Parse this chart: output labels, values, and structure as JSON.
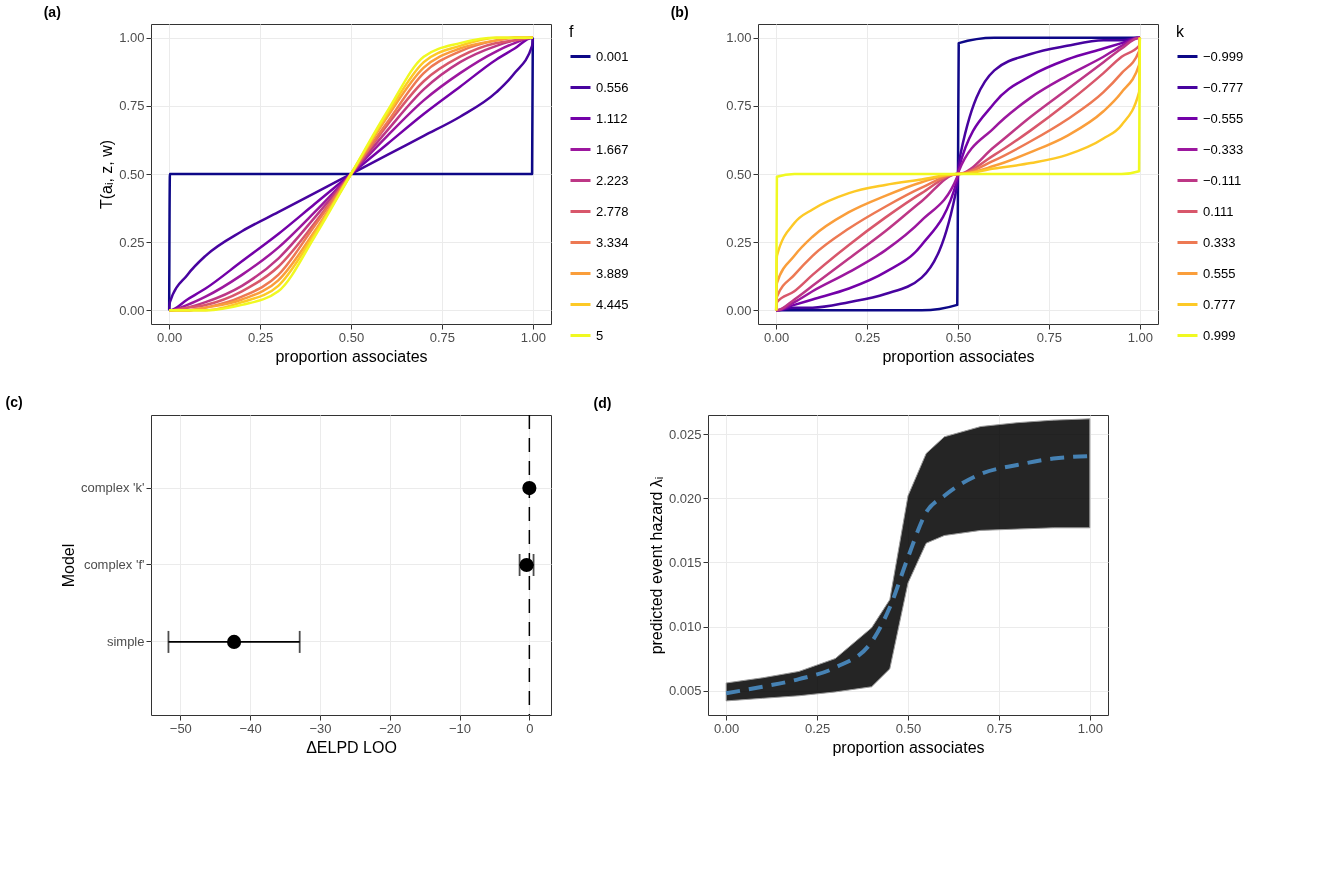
{
  "chart_data": [
    {
      "type": "line",
      "title": "(a)",
      "xlabel": "proportion associates",
      "ylabel": "T(aᵢ, z, w)",
      "legend_title": "f",
      "legend": "right",
      "grid": true,
      "line_style": "solid",
      "marker": "none",
      "x": [
        0,
        0.002,
        0.05,
        0.1,
        0.2,
        0.3,
        0.4,
        0.5,
        0.6,
        0.7,
        0.8,
        0.9,
        0.95,
        0.998,
        1
      ],
      "xlim": [
        -0.05,
        1.05
      ],
      "ylim": [
        -0.05,
        1.05
      ],
      "xticks": [
        {
          "value": 0,
          "label": "0.00"
        },
        {
          "value": 0.25,
          "label": "0.25"
        },
        {
          "value": 0.5,
          "label": "0.50"
        },
        {
          "value": 0.75,
          "label": "0.75"
        },
        {
          "value": 1,
          "label": "1.00"
        }
      ],
      "yticks": [
        {
          "value": 0,
          "label": "0.00"
        },
        {
          "value": 0.25,
          "label": "0.25"
        },
        {
          "value": 0.5,
          "label": "0.50"
        },
        {
          "value": 0.75,
          "label": "0.75"
        },
        {
          "value": 1,
          "label": "1.00"
        }
      ],
      "series": [
        {
          "name": "0.001",
          "color": "#0d0887",
          "values": [
            0,
            0.5,
            0.5,
            0.5,
            0.5,
            0.5,
            0.5,
            0.5,
            0.5,
            0.5,
            0.5,
            0.5,
            0.5,
            0.5,
            1
          ]
        },
        {
          "name": "0.556",
          "color": "#47039f",
          "values": [
            0,
            0.03,
            0.13,
            0.2,
            0.29,
            0.36,
            0.43,
            0.5,
            0.57,
            0.64,
            0.71,
            0.8,
            0.87,
            0.97,
            1
          ]
        },
        {
          "name": "1.112",
          "color": "#7301a8",
          "values": [
            0,
            0,
            0.04,
            0.08,
            0.18,
            0.28,
            0.39,
            0.5,
            0.61,
            0.72,
            0.82,
            0.92,
            0.96,
            1,
            1
          ]
        },
        {
          "name": "1.667",
          "color": "#9c179e",
          "values": [
            0,
            0,
            0.02,
            0.05,
            0.13,
            0.23,
            0.36,
            0.5,
            0.64,
            0.77,
            0.87,
            0.95,
            0.98,
            1,
            1
          ]
        },
        {
          "name": "2.223",
          "color": "#bd3786",
          "values": [
            0,
            0,
            0.01,
            0.03,
            0.09,
            0.19,
            0.34,
            0.5,
            0.66,
            0.81,
            0.91,
            0.97,
            0.99,
            1,
            1
          ]
        },
        {
          "name": "2.778",
          "color": "#d8576b",
          "values": [
            0,
            0,
            0.01,
            0.02,
            0.07,
            0.16,
            0.32,
            0.5,
            0.68,
            0.84,
            0.93,
            0.98,
            0.99,
            1,
            1
          ]
        },
        {
          "name": "3.334",
          "color": "#ed7953",
          "values": [
            0,
            0,
            0,
            0.01,
            0.05,
            0.13,
            0.31,
            0.5,
            0.69,
            0.87,
            0.95,
            0.99,
            1,
            1,
            1
          ]
        },
        {
          "name": "3.889",
          "color": "#fa9e3b",
          "values": [
            0,
            0,
            0,
            0.01,
            0.04,
            0.11,
            0.29,
            0.5,
            0.71,
            0.89,
            0.96,
            0.99,
            1,
            1,
            1
          ]
        },
        {
          "name": "4.445",
          "color": "#fdc926",
          "values": [
            0,
            0,
            0,
            0,
            0.03,
            0.09,
            0.28,
            0.5,
            0.72,
            0.91,
            0.97,
            1,
            1,
            1,
            1
          ]
        },
        {
          "name": "5",
          "color": "#f0f921",
          "values": [
            0,
            0,
            0,
            0,
            0.02,
            0.07,
            0.27,
            0.5,
            0.73,
            0.93,
            0.98,
            1,
            1,
            1,
            1
          ]
        }
      ]
    },
    {
      "type": "line",
      "title": "(b)",
      "xlabel": "proportion associates",
      "legend_title": "k",
      "legend": "right",
      "grid": true,
      "line_style": "solid",
      "marker": "none",
      "x": [
        0,
        0.002,
        0.05,
        0.1,
        0.2,
        0.3,
        0.4,
        0.498,
        0.5,
        0.502,
        0.6,
        0.7,
        0.8,
        0.9,
        0.95,
        0.998,
        1
      ],
      "xlim": [
        -0.05,
        1.05
      ],
      "ylim": [
        -0.05,
        1.05
      ],
      "xticks": [
        {
          "value": 0,
          "label": "0.00"
        },
        {
          "value": 0.25,
          "label": "0.25"
        },
        {
          "value": 0.5,
          "label": "0.50"
        },
        {
          "value": 0.75,
          "label": "0.75"
        },
        {
          "value": 1,
          "label": "1.00"
        }
      ],
      "yticks": [
        {
          "value": 0,
          "label": "0.00"
        },
        {
          "value": 0.25,
          "label": "0.25"
        },
        {
          "value": 0.5,
          "label": "0.50"
        },
        {
          "value": 0.75,
          "label": "0.75"
        },
        {
          "value": 1,
          "label": "1.00"
        }
      ],
      "series": [
        {
          "name": "−0.999",
          "color": "#0d0887",
          "values": [
            0,
            0,
            0,
            0,
            0,
            0,
            0,
            0.02,
            0.5,
            0.98,
            1,
            1,
            1,
            1,
            1,
            1,
            1
          ]
        },
        {
          "name": "−0.777",
          "color": "#47039f",
          "values": [
            0,
            0,
            0.01,
            0.01,
            0.03,
            0.06,
            0.12,
            0.46,
            0.5,
            0.54,
            0.88,
            0.94,
            0.97,
            0.99,
            0.99,
            1,
            1
          ]
        },
        {
          "name": "−0.555",
          "color": "#7301a8",
          "values": [
            0,
            0,
            0.02,
            0.04,
            0.08,
            0.14,
            0.24,
            0.48,
            0.5,
            0.52,
            0.76,
            0.86,
            0.92,
            0.96,
            0.98,
            1,
            1
          ]
        },
        {
          "name": "−0.333",
          "color": "#9c179e",
          "values": [
            0,
            0,
            0.03,
            0.07,
            0.14,
            0.22,
            0.33,
            0.49,
            0.5,
            0.51,
            0.67,
            0.78,
            0.86,
            0.93,
            0.97,
            1,
            1
          ]
        },
        {
          "name": "−0.111",
          "color": "#bd3786",
          "values": [
            0,
            0,
            0.04,
            0.09,
            0.19,
            0.29,
            0.4,
            0.5,
            0.5,
            0.5,
            0.6,
            0.71,
            0.81,
            0.91,
            0.96,
            1,
            1
          ]
        },
        {
          "name": "0.111",
          "color": "#d8576b",
          "values": [
            0,
            0.03,
            0.07,
            0.13,
            0.24,
            0.34,
            0.43,
            0.5,
            0.5,
            0.5,
            0.57,
            0.66,
            0.76,
            0.87,
            0.93,
            0.97,
            1
          ]
        },
        {
          "name": "0.333",
          "color": "#ed7953",
          "values": [
            0,
            0.05,
            0.13,
            0.2,
            0.3,
            0.38,
            0.45,
            0.5,
            0.5,
            0.5,
            0.55,
            0.62,
            0.7,
            0.8,
            0.87,
            0.95,
            1
          ]
        },
        {
          "name": "0.555",
          "color": "#fa9e3b",
          "values": [
            0,
            0.1,
            0.2,
            0.27,
            0.36,
            0.42,
            0.47,
            0.5,
            0.5,
            0.5,
            0.53,
            0.58,
            0.64,
            0.73,
            0.8,
            0.9,
            1
          ]
        },
        {
          "name": "0.777",
          "color": "#fdc926",
          "values": [
            0,
            0.2,
            0.32,
            0.37,
            0.43,
            0.46,
            0.48,
            0.5,
            0.5,
            0.5,
            0.52,
            0.54,
            0.57,
            0.63,
            0.68,
            0.8,
            1
          ]
        },
        {
          "name": "0.999",
          "color": "#f0f921",
          "values": [
            0,
            0.49,
            0.5,
            0.5,
            0.5,
            0.5,
            0.5,
            0.5,
            0.5,
            0.5,
            0.5,
            0.5,
            0.5,
            0.5,
            0.5,
            0.51,
            1
          ]
        }
      ]
    },
    {
      "type": "scatter",
      "title": "(c)",
      "xlabel": "ΔELPD LOO",
      "ylabel": "Model",
      "orientation": "horizontal",
      "grid": true,
      "marker": "circle",
      "color": "#000000",
      "categories": [
        "complex 'k'",
        "complex 'f'",
        "simple"
      ],
      "values": [
        0,
        -0.4,
        -42.3
      ],
      "errors": [
        null,
        [
          -1.4,
          0.6
        ],
        [
          -51.7,
          -32.9
        ]
      ],
      "xlim": [
        -54.2,
        3.1
      ],
      "xticks": [
        {
          "value": -50,
          "label": "−50"
        },
        {
          "value": -40,
          "label": "−40"
        },
        {
          "value": -30,
          "label": "−30"
        },
        {
          "value": -20,
          "label": "−20"
        },
        {
          "value": -10,
          "label": "−10"
        },
        0
      ],
      "ref_lines": [
        {
          "axis": "x",
          "value": 0,
          "color": "#000000",
          "line_style": "dashed"
        }
      ]
    },
    {
      "type": "line",
      "title": "(d)",
      "xlabel": "proportion associates",
      "ylabel": "predicted event hazard  λᵢ",
      "grid": true,
      "marker": "none",
      "x": [
        0,
        0.1,
        0.2,
        0.3,
        0.4,
        0.45,
        0.5,
        0.55,
        0.6,
        0.7,
        0.8,
        0.9,
        1
      ],
      "xlim": [
        -0.05,
        1.05
      ],
      "ylim": [
        0.0031,
        0.0265
      ],
      "xticks": [
        {
          "value": 0,
          "label": "0.00"
        },
        {
          "value": 0.25,
          "label": "0.25"
        },
        {
          "value": 0.5,
          "label": "0.50"
        },
        {
          "value": 0.75,
          "label": "0.75"
        },
        {
          "value": 1,
          "label": "1.00"
        }
      ],
      "yticks": [
        0.005,
        {
          "value": 0.01,
          "label": "0.010"
        },
        0.015,
        {
          "value": 0.02,
          "label": "0.020"
        },
        0.025
      ],
      "series": [
        {
          "color": "#4682b4",
          "line_style": "dashed",
          "values": [
            0.0048,
            0.0053,
            0.0059,
            0.0068,
            0.0088,
            0.0115,
            0.0154,
            0.0189,
            0.0202,
            0.0219,
            0.0226,
            0.0231,
            0.0233
          ],
          "lower": [
            0.0042,
            0.0044,
            0.0046,
            0.0049,
            0.0053,
            0.0067,
            0.0134,
            0.0165,
            0.0171,
            0.0175,
            0.0176,
            0.0177,
            0.0177
          ],
          "upper": [
            0.0056,
            0.006,
            0.0065,
            0.0075,
            0.0099,
            0.0121,
            0.0202,
            0.0235,
            0.0248,
            0.0256,
            0.0259,
            0.0261,
            0.0262
          ]
        }
      ]
    }
  ]
}
